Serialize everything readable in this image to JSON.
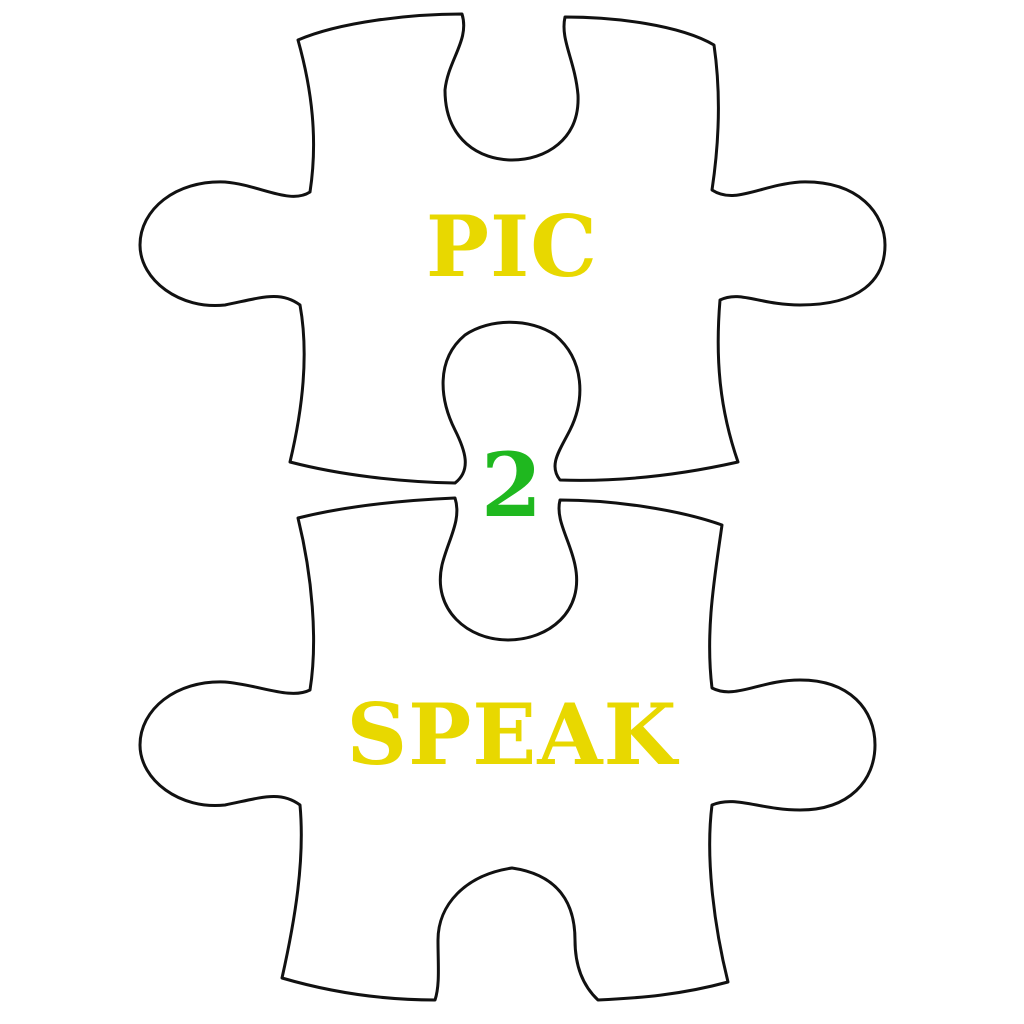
{
  "logo": {
    "word_top": "PIC",
    "word_middle": "2",
    "word_bottom": "SPEAK",
    "colors": {
      "word_top": "#e8d800",
      "word_middle": "#1fb81f",
      "word_bottom": "#e8d800",
      "outline": "#111111",
      "background": "#ffffff"
    }
  }
}
